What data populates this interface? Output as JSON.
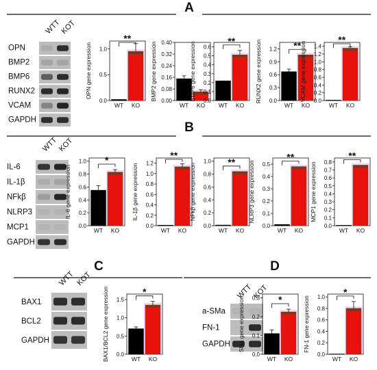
{
  "panels": {
    "A": {
      "letter": "A"
    },
    "B": {
      "letter": "B"
    },
    "C": {
      "letter": "C"
    },
    "D": {
      "letter": "D"
    }
  },
  "colors": {
    "wt_bar": "#000000",
    "ko_bar": "#e8120c",
    "ko_bar_dark": "#7a3a1a",
    "ko_highlight": "#f4b6f0",
    "blot_bg": "#bdbdbd",
    "band": "#1c1c1c",
    "axis": "#111111"
  },
  "blots": {
    "A": {
      "lanes": [
        "WTT",
        "KOT"
      ],
      "rows": [
        "OPN",
        "BMP2",
        "BMP6",
        "RUNX2",
        "VCAM",
        "GAPDH"
      ]
    },
    "B": {
      "lanes": [
        "WTT",
        "KOT"
      ],
      "rows": [
        "IL-6",
        "IL-1β",
        "NFkβ",
        "NLRP3",
        "MCP1",
        "GAPDH"
      ]
    },
    "C": {
      "lanes": [
        "WTT",
        "KOT"
      ],
      "rows": [
        "BAX1",
        "BCL2",
        "GAPDH"
      ]
    },
    "D": {
      "lanes": [
        "WTT",
        "KOT"
      ],
      "rows": [
        "a-SMa",
        "FN-1",
        "GAPDH"
      ]
    }
  },
  "chart_data": [
    {
      "id": "A1",
      "type": "bar",
      "categories": [
        "WT",
        "KO"
      ],
      "values": [
        0.02,
        0.95
      ],
      "errors": [
        0.0,
        0.15
      ],
      "ylabel": "OPN gene expression",
      "ylim": [
        0,
        1.15
      ],
      "ticks": [
        0.0,
        0.5,
        1.0
      ],
      "tick_labels": [
        "0.0",
        "0.5",
        "1.0"
      ],
      "significance": "**"
    },
    {
      "id": "A2",
      "type": "bar",
      "categories": [
        "WT",
        "KO"
      ],
      "values": [
        0.15,
        0.06
      ],
      "errors": [
        0.02,
        0.015
      ],
      "ylabel": "BMP2 gene expression",
      "ylim": [
        0,
        0.4
      ],
      "ticks": [
        0.0,
        0.08,
        0.16,
        0.24,
        0.32,
        0.4
      ],
      "tick_labels": [
        "0.00",
        "0.08",
        "0.16",
        "0.24",
        "0.32",
        "0.40"
      ],
      "significance": ""
    },
    {
      "id": "A3",
      "type": "bar",
      "categories": [
        "WT",
        "KO"
      ],
      "values": [
        0.22,
        0.51
      ],
      "errors": [
        0.0,
        0.05
      ],
      "ylabel": "BMP6 gene expression",
      "ylim": [
        0,
        0.65
      ],
      "ticks": [
        0.0,
        0.1,
        0.2,
        0.3,
        0.4,
        0.5,
        0.6
      ],
      "tick_labels": [
        "0.0",
        "0.1",
        "0.2",
        "0.3",
        "0.4",
        "0.5",
        "0.6"
      ],
      "significance": "**"
    },
    {
      "id": "A4",
      "type": "bar",
      "categories": [
        "WT",
        "KO"
      ],
      "values": [
        0.67,
        1.06
      ],
      "errors": [
        0.06,
        0.0
      ],
      "ylabel": "RUNX2 gene expression",
      "ylim": [
        0,
        1.35
      ],
      "ticks": [
        0.0,
        0.3,
        0.6,
        0.9,
        1.2
      ],
      "tick_labels": [
        "0.0",
        "0.3",
        "0.6",
        "0.9",
        "1.2"
      ],
      "significance": "**"
    },
    {
      "id": "A5",
      "type": "bar",
      "categories": [
        "WT",
        "KO"
      ],
      "values": [
        0.01,
        1.35
      ],
      "errors": [
        0.0,
        0.04
      ],
      "ylabel": "VCAM gene expression",
      "ylim": [
        0,
        1.5
      ],
      "ticks": [
        0.0,
        0.2,
        0.4,
        0.6,
        0.8,
        1.0,
        1.2,
        1.4
      ],
      "tick_labels": [
        "0.0",
        "0.2",
        "0.4",
        "0.6",
        "0.8",
        "1.0",
        "1.2",
        "1.4"
      ],
      "significance": "**"
    },
    {
      "id": "B1",
      "type": "bar",
      "categories": [
        "WT",
        "KO"
      ],
      "values": [
        0.55,
        0.83
      ],
      "errors": [
        0.07,
        0.04
      ],
      "ylabel": "IL-6 gene expression",
      "ylim": [
        0,
        1.05
      ],
      "ticks": [
        0.0,
        0.2,
        0.4,
        0.6,
        0.8,
        1.0
      ],
      "tick_labels": [
        "0.0",
        "0.2",
        "0.4",
        "0.6",
        "0.8",
        "1.0"
      ],
      "significance": "*"
    },
    {
      "id": "B2",
      "type": "bar",
      "categories": [
        "WT",
        "KO"
      ],
      "values": [
        0.01,
        1.13
      ],
      "errors": [
        0.0,
        0.06
      ],
      "ylabel": "IL-1β gene expression",
      "ylim": [
        0,
        1.3
      ],
      "ticks": [
        0.0,
        0.2,
        0.4,
        0.6,
        0.8,
        1.0,
        1.2
      ],
      "tick_labels": [
        "0.0",
        "0.2",
        "0.4",
        "0.6",
        "0.8",
        "1.0",
        "1.2"
      ],
      "significance": "**"
    },
    {
      "id": "B3",
      "type": "bar",
      "categories": [
        "WT",
        "KO"
      ],
      "values": [
        0.01,
        0.84
      ],
      "errors": [
        0.0,
        0.0
      ],
      "ylabel": "NFkβ gene expression",
      "ylim": [
        0,
        1.05
      ],
      "ticks": [
        0.0,
        0.2,
        0.4,
        0.6,
        0.8,
        1.0
      ],
      "tick_labels": [
        "0.0",
        "0.2",
        "0.4",
        "0.6",
        "0.8",
        "1.0"
      ],
      "significance": "**"
    },
    {
      "id": "B4",
      "type": "bar",
      "categories": [
        "WT",
        "KO"
      ],
      "values": [
        0.01,
        0.48
      ],
      "errors": [
        0.0,
        0.0
      ],
      "ylabel": "NLRP3 gene expression",
      "ylim": [
        0,
        0.55
      ],
      "ticks": [
        0.0,
        0.1,
        0.2,
        0.3,
        0.4,
        0.5
      ],
      "tick_labels": [
        "0.0",
        "0.1",
        "0.2",
        "0.3",
        "0.4",
        "0.5"
      ],
      "significance": "**"
    },
    {
      "id": "B5",
      "type": "bar",
      "categories": [
        "WT",
        "KO"
      ],
      "values": [
        0.005,
        0.76
      ],
      "errors": [
        0.0,
        0.0
      ],
      "ylabel": "MCP1 gene expression",
      "ylim": [
        0,
        0.85
      ],
      "ticks": [
        0.0,
        0.1,
        0.2,
        0.3,
        0.4,
        0.5,
        0.6,
        0.7,
        0.8
      ],
      "tick_labels": [
        "0.0",
        "0.1",
        "0.2",
        "0.3",
        "0.4",
        "0.5",
        "0.6",
        "0.7",
        "0.8"
      ],
      "significance": "**"
    },
    {
      "id": "C1",
      "type": "bar",
      "categories": [
        "WT",
        "KO"
      ],
      "values": [
        0.7,
        1.35
      ],
      "errors": [
        0.05,
        0.1
      ],
      "ylabel": "BAX1/BCL2 gene expression",
      "ylim": [
        0,
        1.65
      ],
      "ticks": [
        0.0,
        0.5,
        1.0,
        1.5
      ],
      "tick_labels": [
        "0.0",
        "0.5",
        "1.0",
        "1.5"
      ],
      "significance": "*"
    },
    {
      "id": "D1",
      "type": "bar",
      "categories": [
        "WT",
        "KO"
      ],
      "values": [
        0.11,
        0.225
      ],
      "errors": [
        0.02,
        0.015
      ],
      "ylabel": "SMa gene expression",
      "ylim": [
        0,
        0.32
      ],
      "ticks": [
        0.0,
        0.1,
        0.2,
        0.3
      ],
      "tick_labels": [
        "0.0",
        "0.1",
        "0.2",
        "0.3"
      ],
      "significance": "*"
    },
    {
      "id": "D2",
      "type": "bar",
      "categories": [
        "WT",
        "KO"
      ],
      "values": [
        0.005,
        0.8
      ],
      "errors": [
        0.0,
        0.12
      ],
      "ylabel": "FN-1 gene expression",
      "ylim": [
        0,
        1.05
      ],
      "ticks": [
        0.0,
        0.2,
        0.4,
        0.6,
        0.8,
        1.0
      ],
      "tick_labels": [
        "0.0",
        "0.2",
        "0.4",
        "0.6",
        "0.8",
        "1.0"
      ],
      "significance": "*"
    }
  ]
}
